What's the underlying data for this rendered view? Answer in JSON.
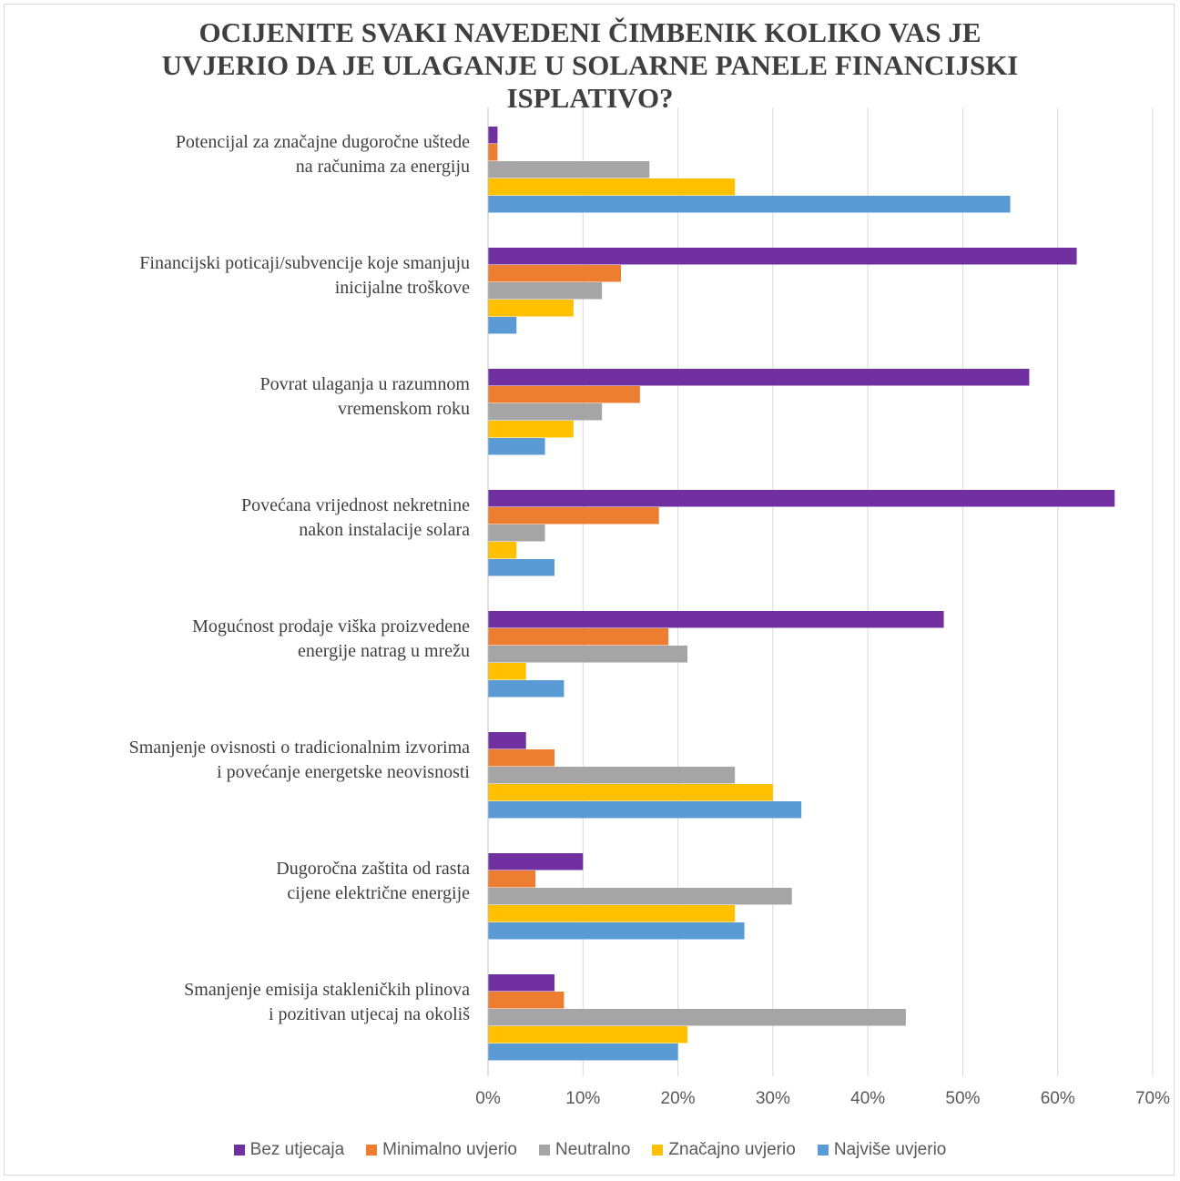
{
  "chart_data": {
    "type": "bar",
    "orientation": "horizontal",
    "title_lines": [
      "OCIJENITE SVAKI NAVEDENI ČIMBENIK KOLIKO VAS JE",
      "UVJERIO DA JE ULAGANJE U SOLARNE PANELE FINANCIJSKI",
      "ISPLATIVO?"
    ],
    "categories": [
      [
        "Potencijal za značajne dugoročne uštede",
        "na računima za energiju"
      ],
      [
        "Financijski poticaji/subvencije koje smanjuju",
        "inicijalne troškove"
      ],
      [
        "Povrat ulaganja u razumnom",
        "vremenskom roku"
      ],
      [
        "Povećana vrijednost nekretnine",
        "nakon instalacije solara"
      ],
      [
        "Mogućnost prodaje viška proizvedene",
        "energije natrag u mrežu"
      ],
      [
        "Smanjenje ovisnosti o tradicionalnim izvorima",
        "i povećanje energetske neovisnosti"
      ],
      [
        "Dugoročna zaštita od rasta",
        "cijene električne energije"
      ],
      [
        "Smanjenje emisija stakleničkih plinova",
        "i pozitivan utjecaj na okoliš"
      ]
    ],
    "series": [
      {
        "name": "Bez utjecaja",
        "color": "#7030a0",
        "values": [
          1,
          62,
          57,
          66,
          48,
          4,
          10,
          7
        ]
      },
      {
        "name": "Minimalno uvjerio",
        "color": "#ed7d31",
        "values": [
          1,
          14,
          16,
          18,
          19,
          7,
          5,
          8
        ]
      },
      {
        "name": "Neutralno",
        "color": "#a5a5a5",
        "values": [
          17,
          12,
          12,
          6,
          21,
          26,
          32,
          44
        ]
      },
      {
        "name": "Značajno uvjerio",
        "color": "#ffc000",
        "values": [
          26,
          9,
          9,
          3,
          4,
          30,
          26,
          21
        ]
      },
      {
        "name": "Najviše uvjerio",
        "color": "#5b9bd5",
        "values": [
          55,
          3,
          6,
          7,
          8,
          33,
          27,
          20
        ]
      }
    ],
    "xticks": [
      "0%",
      "10%",
      "20%",
      "30%",
      "40%",
      "50%",
      "60%",
      "70%"
    ],
    "xlim": [
      0,
      70
    ],
    "unit": "%",
    "grid": true,
    "legend_position": "bottom"
  }
}
